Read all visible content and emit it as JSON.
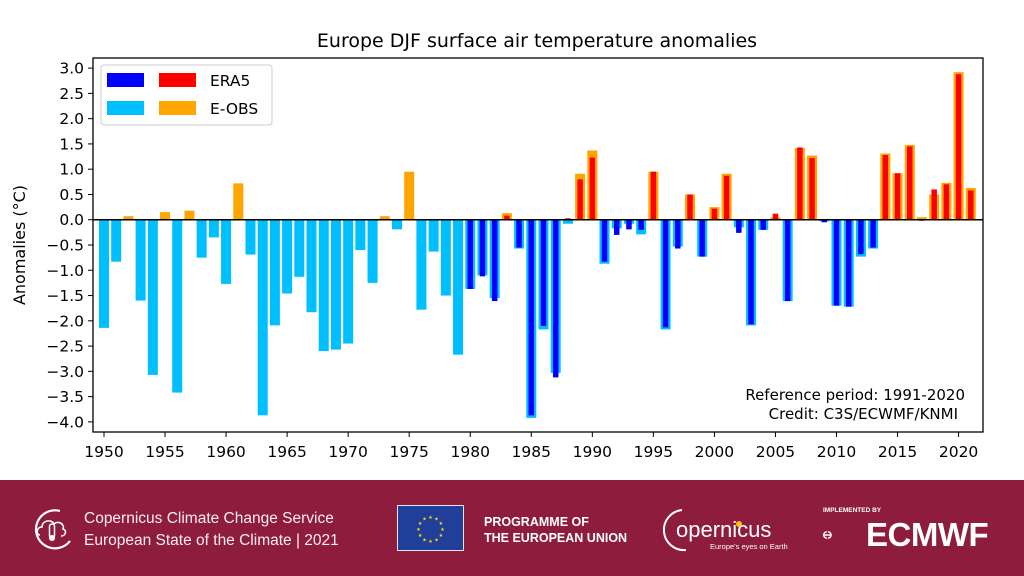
{
  "chart_data": {
    "type": "bar",
    "title": "Europe DJF surface air temperature anomalies",
    "xlabel": "",
    "ylabel": "Anomalies (°C)",
    "ylim": [
      -4.2,
      3.2
    ],
    "xlim": [
      1949.1,
      2022.0
    ],
    "yticks": [
      3.0,
      2.5,
      2.0,
      1.5,
      1.0,
      0.5,
      0.0,
      -0.5,
      -1.0,
      -1.5,
      -2.0,
      -2.5,
      -3.0,
      -3.5,
      -4.0
    ],
    "ytick_labels": [
      "3.0",
      "2.5",
      "2.0",
      "1.5",
      "1.0",
      "0.5",
      "0.0",
      "−0.5",
      "−1.0",
      "−1.5",
      "−2.0",
      "−2.5",
      "−3.0",
      "−3.5",
      "−4.0"
    ],
    "xticks": [
      1950,
      1955,
      1960,
      1965,
      1970,
      1975,
      1980,
      1985,
      1990,
      1995,
      2000,
      2005,
      2010,
      2015,
      2020
    ],
    "grid": false,
    "legend": {
      "placement": "top-left",
      "entries": [
        {
          "name": "ERA5",
          "neg_color": "#0000ff",
          "pos_color": "#ff0000"
        },
        {
          "name": "E-OBS",
          "neg_color": "#00bfff",
          "pos_color": "#ffa500"
        }
      ]
    },
    "annotations": [
      "Reference period: 1991-2020",
      "Credit: C3S/ECWMF/KNMI"
    ],
    "colors": {
      "era5_neg": "#0000ff",
      "era5_pos": "#ff0000",
      "eobs_neg": "#00bfff",
      "eobs_pos": "#ffa500"
    },
    "x": [
      1950,
      1951,
      1952,
      1953,
      1954,
      1955,
      1956,
      1957,
      1958,
      1959,
      1960,
      1961,
      1962,
      1963,
      1964,
      1965,
      1966,
      1967,
      1968,
      1969,
      1970,
      1971,
      1972,
      1973,
      1974,
      1975,
      1976,
      1977,
      1978,
      1979,
      1980,
      1981,
      1982,
      1983,
      1984,
      1985,
      1986,
      1987,
      1988,
      1989,
      1990,
      1991,
      1992,
      1993,
      1994,
      1995,
      1996,
      1997,
      1998,
      1999,
      2000,
      2001,
      2002,
      2003,
      2004,
      2005,
      2006,
      2007,
      2008,
      2009,
      2010,
      2011,
      2012,
      2013,
      2014,
      2015,
      2016,
      2017,
      2018,
      2019,
      2020,
      2021
    ],
    "series": [
      {
        "name": "E-OBS",
        "values": [
          -2.14,
          -0.83,
          0.07,
          -1.6,
          -3.07,
          0.15,
          -3.42,
          0.18,
          -0.75,
          -0.35,
          -1.27,
          0.72,
          -0.69,
          -3.87,
          -2.09,
          -1.46,
          -1.13,
          -1.83,
          -2.6,
          -2.57,
          -2.45,
          -0.6,
          -1.25,
          0.07,
          -0.19,
          0.95,
          -1.78,
          -0.63,
          -1.5,
          -2.67,
          -1.37,
          -1.1,
          -1.55,
          0.13,
          -0.57,
          -3.92,
          -2.17,
          -3.03,
          -0.08,
          0.91,
          1.37,
          -0.87,
          -0.17,
          -0.08,
          -0.29,
          0.95,
          -2.17,
          -0.53,
          0.5,
          -0.73,
          0.25,
          0.91,
          -0.15,
          -2.09,
          -0.2,
          0.05,
          -1.61,
          1.42,
          1.27,
          -0.03,
          -1.7,
          -1.72,
          -0.73,
          -0.57,
          1.31,
          0.92,
          1.48,
          0.05,
          0.5,
          0.73,
          2.92,
          0.63
        ]
      },
      {
        "name": "ERA5",
        "values": [
          null,
          null,
          null,
          null,
          null,
          null,
          null,
          null,
          null,
          null,
          null,
          null,
          null,
          null,
          null,
          null,
          null,
          null,
          null,
          null,
          null,
          null,
          null,
          null,
          null,
          null,
          null,
          null,
          null,
          null,
          -1.37,
          -1.12,
          -1.61,
          0.08,
          -0.55,
          -3.87,
          -2.1,
          -3.12,
          0.03,
          0.8,
          1.23,
          -0.83,
          -0.3,
          -0.19,
          -0.2,
          0.95,
          -2.13,
          -0.57,
          0.5,
          -0.73,
          0.22,
          0.87,
          -0.26,
          -2.07,
          -0.2,
          0.12,
          -1.61,
          1.43,
          1.22,
          -0.05,
          -1.7,
          -1.72,
          -0.68,
          -0.55,
          1.28,
          0.92,
          1.45,
          -0.02,
          0.6,
          0.7,
          2.88,
          0.58
        ]
      }
    ]
  },
  "footer": {
    "c3s_line1": "Copernicus Climate Change Service",
    "c3s_line2": "European State of the Climate | 2021",
    "eu_line1": "PROGRAMME OF",
    "eu_line2": "THE EUROPEAN UNION",
    "copernicus_name": "opernicus",
    "copernicus_tagline": "Europe's eyes on Earth",
    "ecmwf_implemented": "IMPLEMENTED BY",
    "ecmwf_name": "ECMWF",
    "background_color": "#8e1c3c"
  }
}
